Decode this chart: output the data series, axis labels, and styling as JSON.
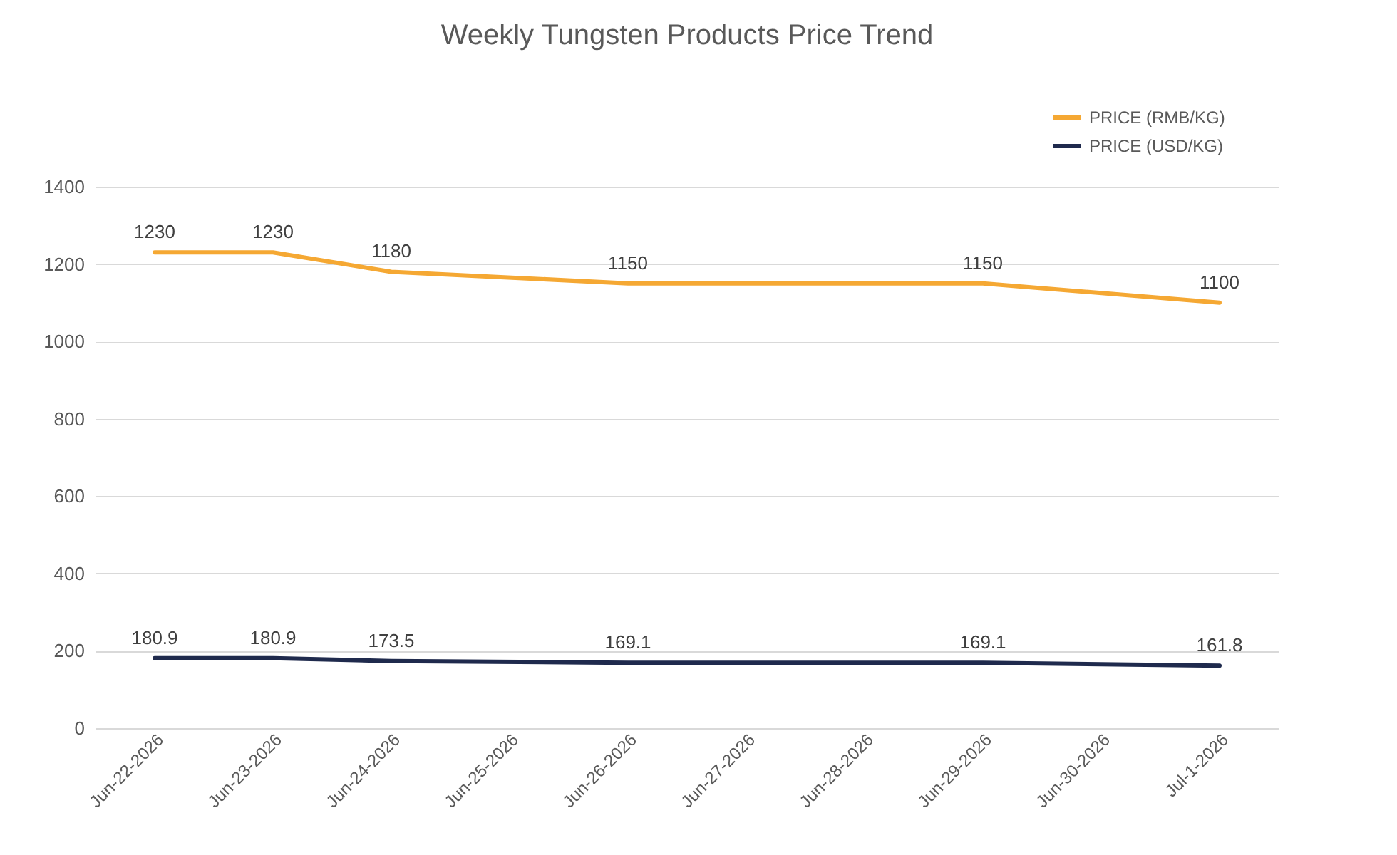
{
  "chart_data": {
    "type": "line",
    "title": "Weekly Tungsten Products Price Trend",
    "categories": [
      "Jun-22-2026",
      "Jun-23-2026",
      "Jun-24-2026",
      "Jun-25-2026",
      "Jun-26-2026",
      "Jun-27-2026",
      "Jun-28-2026",
      "Jun-29-2026",
      "Jun-30-2026",
      "Jul-1-2026"
    ],
    "series": [
      {
        "name": "PRICE (RMB/KG)",
        "color": "#f5a833",
        "values": [
          1230,
          1230,
          1180,
          null,
          1150,
          null,
          null,
          1150,
          null,
          1100
        ]
      },
      {
        "name": "PRICE (USD/KG)",
        "color": "#1f2a4d",
        "values": [
          180.9,
          180.9,
          173.5,
          null,
          169.1,
          null,
          null,
          169.1,
          null,
          161.8
        ]
      }
    ],
    "ylim": [
      0,
      1400
    ],
    "yticks": [
      0,
      200,
      400,
      600,
      800,
      1000,
      1200,
      1400
    ],
    "grid": "y",
    "legend": "top right",
    "data_labels": true,
    "line_style": "solid",
    "marker": "none"
  }
}
